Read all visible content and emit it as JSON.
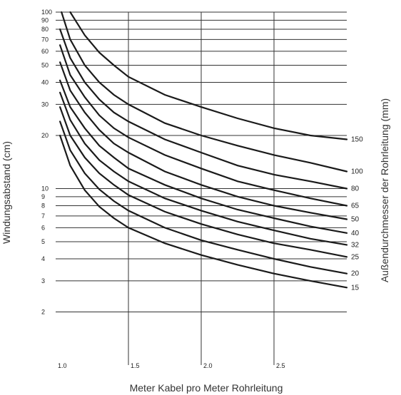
{
  "chart_data": {
    "type": "line",
    "xlabel": "Meter Kabel pro Meter Rohrleitung",
    "ylabel": "Windungsabstand (cm)",
    "y2label": "Außendurchmesser der Rohrleitung (mm)",
    "xlim": [
      1.0,
      3.0
    ],
    "ylim": [
      1,
      100
    ],
    "yscale": "log",
    "x_ticks": [
      {
        "value": 1.0,
        "label": "1.0"
      },
      {
        "value": 1.5,
        "label": "1.5"
      },
      {
        "value": 2.0,
        "label": "2.0"
      },
      {
        "value": 2.5,
        "label": "2.5"
      }
    ],
    "y_ticks": [
      {
        "value": 100,
        "label": "100"
      },
      {
        "value": 90,
        "label": "90"
      },
      {
        "value": 80,
        "label": "80"
      },
      {
        "value": 70,
        "label": "70"
      },
      {
        "value": 60,
        "label": "60"
      },
      {
        "value": 50,
        "label": "50"
      },
      {
        "value": 40,
        "label": "40"
      },
      {
        "value": 30,
        "label": "30"
      },
      {
        "value": 20,
        "label": "20"
      },
      {
        "value": 10,
        "label": "10"
      },
      {
        "value": 9,
        "label": "9"
      },
      {
        "value": 8,
        "label": "8"
      },
      {
        "value": 7,
        "label": "7"
      },
      {
        "value": 6,
        "label": "6"
      },
      {
        "value": 5,
        "label": "5"
      },
      {
        "value": 4,
        "label": "4"
      },
      {
        "value": 3,
        "label": "3"
      },
      {
        "value": 2,
        "label": "2"
      }
    ],
    "grid": true,
    "series": [
      {
        "name": "150",
        "x": [
          1.1,
          1.2,
          1.3,
          1.4,
          1.5,
          1.75,
          2.0,
          2.25,
          2.5,
          2.75,
          3.0
        ],
        "y": [
          100,
          74,
          59,
          50,
          43,
          34,
          29,
          25,
          22,
          20,
          19
        ]
      },
      {
        "name": "100",
        "x": [
          1.04,
          1.1,
          1.2,
          1.3,
          1.4,
          1.5,
          1.75,
          2.0,
          2.25,
          2.5,
          2.75,
          3.0
        ],
        "y": [
          100,
          70,
          50,
          40,
          34,
          30,
          23.5,
          20,
          17.5,
          15.5,
          14,
          12.5
        ]
      },
      {
        "name": "80",
        "x": [
          1.03,
          1.1,
          1.2,
          1.3,
          1.4,
          1.5,
          1.75,
          2.0,
          2.25,
          2.5,
          2.75,
          3.0
        ],
        "y": [
          80,
          55,
          40,
          32,
          27,
          24,
          19,
          16,
          13.5,
          12,
          11,
          10
        ]
      },
      {
        "name": "65",
        "x": [
          1.03,
          1.1,
          1.2,
          1.3,
          1.4,
          1.5,
          1.75,
          2.0,
          2.25,
          2.5,
          2.75,
          3.0
        ],
        "y": [
          65,
          44,
          33,
          26,
          22,
          19.5,
          15.5,
          13,
          11,
          9.8,
          8.8,
          8
        ]
      },
      {
        "name": "50",
        "x": [
          1.03,
          1.1,
          1.2,
          1.3,
          1.4,
          1.5,
          1.75,
          2.0,
          2.25,
          2.5,
          2.75,
          3.0
        ],
        "y": [
          52,
          36,
          27,
          21.5,
          18,
          16,
          12.5,
          10.5,
          9,
          8,
          7.3,
          6.7
        ]
      },
      {
        "name": "40",
        "x": [
          1.03,
          1.1,
          1.2,
          1.3,
          1.4,
          1.5,
          1.75,
          2.0,
          2.25,
          2.5,
          2.75,
          3.0
        ],
        "y": [
          41,
          29,
          22,
          17.5,
          15,
          13,
          10.5,
          8.8,
          7.6,
          6.8,
          6.1,
          5.6
        ]
      },
      {
        "name": "32",
        "x": [
          1.03,
          1.1,
          1.2,
          1.3,
          1.4,
          1.5,
          1.75,
          2.0,
          2.25,
          2.5,
          2.75,
          3.0
        ],
        "y": [
          35,
          24.5,
          18,
          14.5,
          12.5,
          11,
          8.8,
          7.5,
          6.5,
          5.8,
          5.2,
          4.8
        ]
      },
      {
        "name": "25",
        "x": [
          1.03,
          1.1,
          1.2,
          1.3,
          1.4,
          1.5,
          1.75,
          2.0,
          2.25,
          2.5,
          2.75,
          3.0
        ],
        "y": [
          29,
          20,
          15,
          12.2,
          10.5,
          9.2,
          7.4,
          6.3,
          5.5,
          4.9,
          4.5,
          4.1
        ]
      },
      {
        "name": "20",
        "x": [
          1.03,
          1.1,
          1.2,
          1.3,
          1.4,
          1.5,
          1.75,
          2.0,
          2.25,
          2.5,
          2.75,
          3.0
        ],
        "y": [
          24,
          16.5,
          12.2,
          9.9,
          8.5,
          7.5,
          6.0,
          5.1,
          4.5,
          4.0,
          3.6,
          3.3
        ]
      },
      {
        "name": "15",
        "x": [
          1.03,
          1.1,
          1.2,
          1.3,
          1.4,
          1.5,
          1.75,
          2.0,
          2.25,
          2.5,
          2.75,
          3.0
        ],
        "y": [
          20,
          13.5,
          9.8,
          7.9,
          6.8,
          6.0,
          4.9,
          4.2,
          3.7,
          3.3,
          3.0,
          2.75
        ]
      }
    ]
  }
}
